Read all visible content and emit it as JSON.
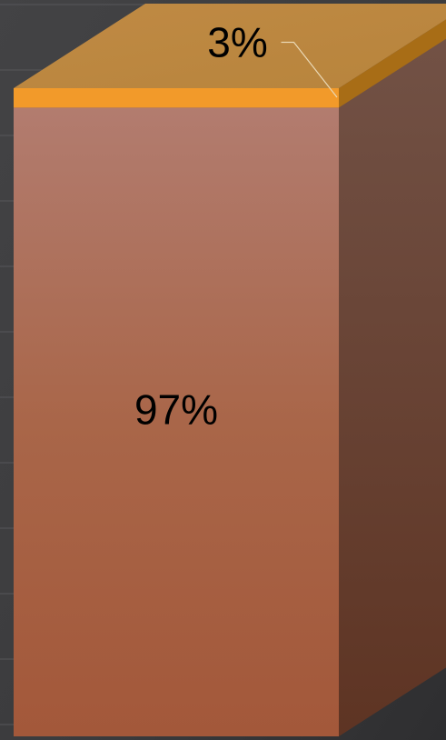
{
  "chart_data": {
    "type": "bar",
    "stacked": true,
    "percent": true,
    "three_d": true,
    "grid": true,
    "legend": "none",
    "title": "",
    "xlabel": "",
    "ylabel": "",
    "ylim": [
      0,
      100
    ],
    "series": [
      {
        "name": "",
        "value": 97,
        "label": "97%",
        "color": "#a86245"
      },
      {
        "name": "",
        "value": 3,
        "label": "3%",
        "color": "#f29a2a"
      }
    ]
  }
}
